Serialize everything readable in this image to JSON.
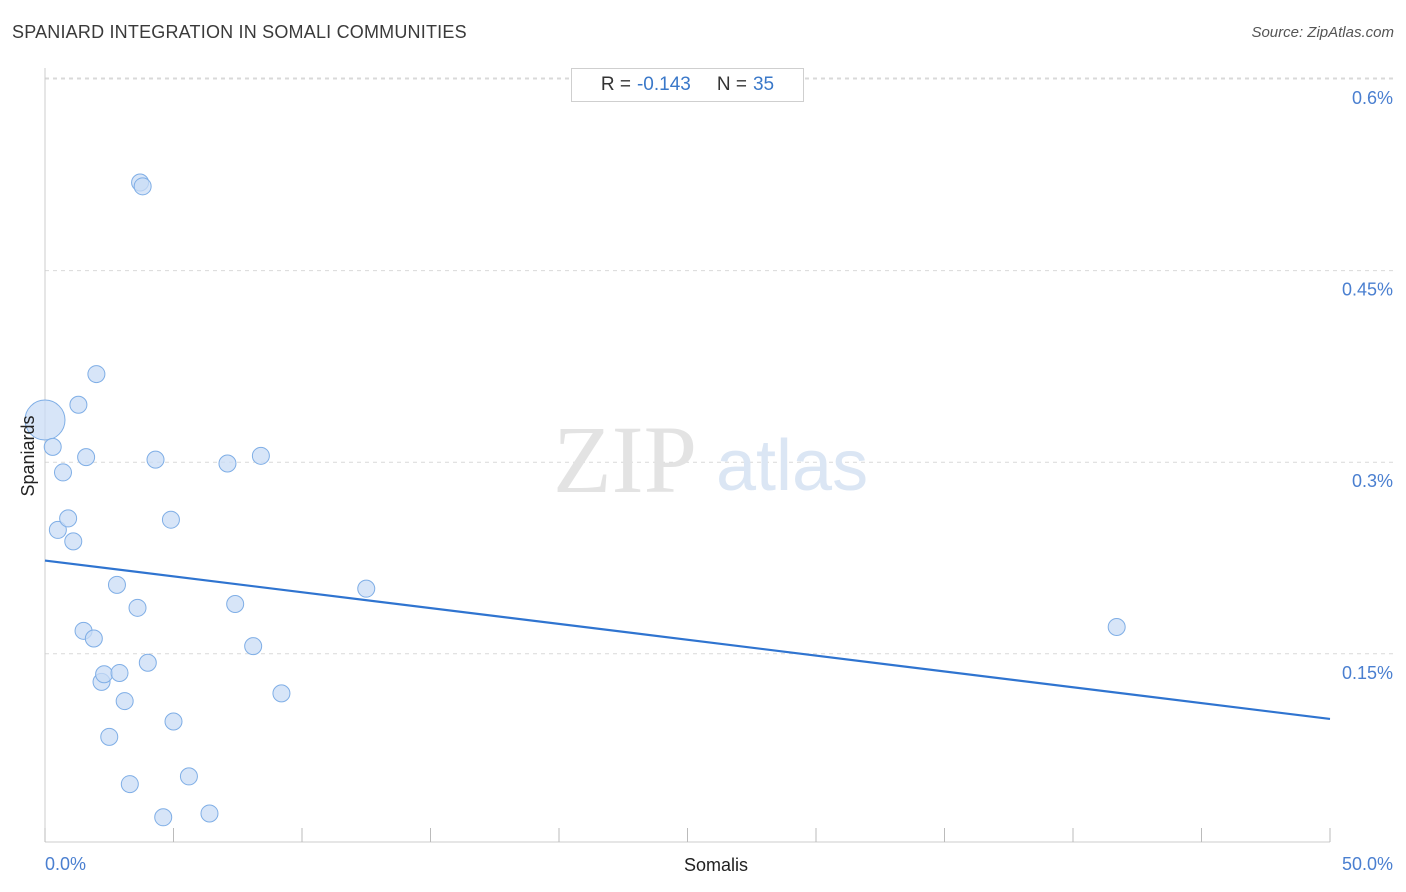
{
  "title": "SPANIARD INTEGRATION IN SOMALI COMMUNITIES",
  "source": "Source: ZipAtlas.com",
  "stats": {
    "r_label": "R =",
    "r_value": "-0.143",
    "n_label": "N =",
    "n_value": "35"
  },
  "watermark": {
    "zip": "ZIP",
    "atlas": "atlas"
  },
  "colors": {
    "point_fill": "#c9dcf5",
    "point_stroke": "#7faee6",
    "line": "#2f74d0",
    "tick_label": "#4a7fd0",
    "grid": "#d9d9d9"
  },
  "chart_data": {
    "type": "scatter",
    "title": "SPANIARD INTEGRATION IN SOMALI COMMUNITIES",
    "xlabel": "Somalis",
    "ylabel": "Spaniards",
    "xlim": [
      0,
      50
    ],
    "ylim": [
      0.03,
      0.615
    ],
    "x_tick_labels": [
      {
        "value": 0,
        "label": "0.0%"
      },
      {
        "value": 50,
        "label": "50.0%"
      }
    ],
    "y_ticks": [
      {
        "value": 0.15,
        "label": "0.15%"
      },
      {
        "value": 0.3,
        "label": "0.3%"
      },
      {
        "value": 0.45,
        "label": "0.45%"
      },
      {
        "value": 0.6,
        "label": "0.6%"
      }
    ],
    "grid": true,
    "points": [
      {
        "x": 0.0,
        "y": 0.333,
        "size": "large"
      },
      {
        "x": 0.3,
        "y": 0.312
      },
      {
        "x": 0.5,
        "y": 0.247
      },
      {
        "x": 0.7,
        "y": 0.292
      },
      {
        "x": 0.9,
        "y": 0.256
      },
      {
        "x": 1.1,
        "y": 0.238
      },
      {
        "x": 1.3,
        "y": 0.345
      },
      {
        "x": 1.5,
        "y": 0.168
      },
      {
        "x": 1.6,
        "y": 0.304
      },
      {
        "x": 1.9,
        "y": 0.162
      },
      {
        "x": 2.0,
        "y": 0.369
      },
      {
        "x": 2.2,
        "y": 0.128
      },
      {
        "x": 2.3,
        "y": 0.134
      },
      {
        "x": 2.5,
        "y": 0.085
      },
      {
        "x": 2.8,
        "y": 0.204
      },
      {
        "x": 2.9,
        "y": 0.135
      },
      {
        "x": 3.1,
        "y": 0.113
      },
      {
        "x": 3.3,
        "y": 0.048
      },
      {
        "x": 3.6,
        "y": 0.186
      },
      {
        "x": 3.7,
        "y": 0.519
      },
      {
        "x": 3.8,
        "y": 0.516
      },
      {
        "x": 4.0,
        "y": 0.143
      },
      {
        "x": 4.3,
        "y": 0.302
      },
      {
        "x": 4.6,
        "y": 0.022
      },
      {
        "x": 4.9,
        "y": 0.255
      },
      {
        "x": 5.0,
        "y": 0.097
      },
      {
        "x": 5.6,
        "y": 0.054
      },
      {
        "x": 6.4,
        "y": 0.025
      },
      {
        "x": 7.1,
        "y": 0.299
      },
      {
        "x": 7.4,
        "y": 0.189
      },
      {
        "x": 8.1,
        "y": 0.156
      },
      {
        "x": 8.4,
        "y": 0.305
      },
      {
        "x": 9.2,
        "y": 0.119
      },
      {
        "x": 12.5,
        "y": 0.201
      },
      {
        "x": 41.7,
        "y": 0.171
      }
    ],
    "trendline": {
      "x": [
        0,
        50
      ],
      "y": [
        0.223,
        0.099
      ]
    }
  }
}
